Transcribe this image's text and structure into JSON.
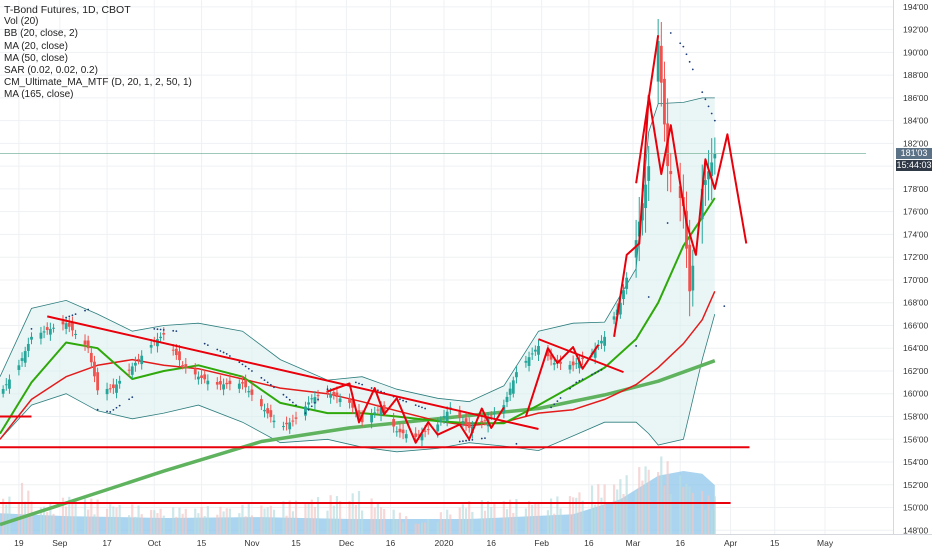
{
  "legend": {
    "title": "T-Bond Futures, 1D, CBOT",
    "indicators": [
      "Vol (20)",
      "BB (20, close, 2)",
      "MA (20, close)",
      "MA (50, close)",
      "SAR (0.02, 0.02, 0.2)",
      "CM_Ultimate_MA_MTF (D, 20, 1, 2, 50, 1)",
      "MA (165, close)"
    ]
  },
  "price_badges": {
    "last": "181'03",
    "countdown": "15:44:03",
    "colors": {
      "last": "#5b7186",
      "countdown": "#2f3a46"
    }
  },
  "colors": {
    "up_candle": "#26a69a",
    "down_candle": "#ef5350",
    "bb": "#2e7d7d",
    "bb_fill": "#d9efef",
    "ma20": "#2ea80a",
    "ma50": "#e31b1b",
    "ma165": "#5fb35f",
    "sar": "#1c3d7a",
    "trendline": "#e8000b",
    "volume_area": "#8ec6ea",
    "volume_bar": "#a8d4f0"
  },
  "chart_data": {
    "type": "candlestick",
    "title": "T-Bond Futures, 1D, CBOT",
    "y_ticks": [
      "148'00",
      "150'00",
      "152'00",
      "154'00",
      "156'00",
      "158'00",
      "160'00",
      "162'00",
      "164'00",
      "166'00",
      "168'00",
      "170'00",
      "172'00",
      "174'00",
      "176'00",
      "178'00",
      "180'00",
      "182'00",
      "184'00",
      "186'00",
      "188'00",
      "190'00",
      "192'00",
      "194'00"
    ],
    "ylim": [
      147.5,
      194.6
    ],
    "x_ticks": [
      "19",
      "Sep",
      "17",
      "Oct",
      "15",
      "Nov",
      "15",
      "Dec",
      "16",
      "2020",
      "16",
      "Feb",
      "16",
      "Mar",
      "16",
      "Apr",
      "15",
      "May"
    ],
    "x_range": [
      "2019-08-13",
      "2020-05-14"
    ],
    "price_path": [
      [
        "2019-08-13",
        160.0
      ],
      [
        "2019-08-19",
        162.5
      ],
      [
        "2019-08-23",
        165.0
      ],
      [
        "2019-08-28",
        165.6
      ],
      [
        "2019-09-03",
        166.2
      ],
      [
        "2019-09-10",
        164.0
      ],
      [
        "2019-09-13",
        160.3
      ],
      [
        "2019-09-18",
        160.5
      ],
      [
        "2019-09-24",
        162.4
      ],
      [
        "2019-10-01",
        164.6
      ],
      [
        "2019-10-04",
        165.2
      ],
      [
        "2019-10-10",
        162.5
      ],
      [
        "2019-10-15",
        161.5
      ],
      [
        "2019-10-21",
        160.8
      ],
      [
        "2019-10-29",
        160.9
      ],
      [
        "2019-11-04",
        158.9
      ],
      [
        "2019-11-10",
        157.0
      ],
      [
        "2019-11-15",
        157.8
      ],
      [
        "2019-11-20",
        159.6
      ],
      [
        "2019-11-25",
        160.1
      ],
      [
        "2019-12-02",
        159.2
      ],
      [
        "2019-12-06",
        157.5
      ],
      [
        "2019-12-12",
        158.8
      ],
      [
        "2019-12-17",
        156.7
      ],
      [
        "2019-12-23",
        156.2
      ],
      [
        "2019-12-30",
        157.3
      ],
      [
        "2020-01-03",
        158.8
      ],
      [
        "2020-01-09",
        157.0
      ],
      [
        "2020-01-14",
        157.6
      ],
      [
        "2020-01-20",
        159.0
      ],
      [
        "2020-01-24",
        161.9
      ],
      [
        "2020-01-31",
        164.2
      ],
      [
        "2020-02-05",
        162.7
      ],
      [
        "2020-02-11",
        162.5
      ],
      [
        "2020-02-17",
        163.6
      ],
      [
        "2020-02-21",
        165.0
      ],
      [
        "2020-02-26",
        168.0
      ],
      [
        "2020-03-02",
        173.5
      ],
      [
        "2020-03-06",
        180.0
      ],
      [
        "2020-03-09",
        191.0
      ],
      [
        "2020-03-12",
        180.0
      ],
      [
        "2020-03-17",
        176.5
      ],
      [
        "2020-03-19",
        169.0
      ],
      [
        "2020-03-23",
        178.0
      ],
      [
        "2020-03-27",
        181.1
      ]
    ],
    "series": [
      {
        "name": "BB (20, close, 2)",
        "points": [
          [
            "2019-08-13",
            161.5,
            156.0
          ],
          [
            "2019-08-23",
            167.5,
            159.0
          ],
          [
            "2019-09-03",
            168.2,
            160.0
          ],
          [
            "2019-09-13",
            167.0,
            158.5
          ],
          [
            "2019-09-24",
            165.5,
            157.8
          ],
          [
            "2019-10-04",
            166.0,
            158.3
          ],
          [
            "2019-10-15",
            166.2,
            159.0
          ],
          [
            "2019-10-29",
            165.5,
            157.5
          ],
          [
            "2019-11-10",
            163.0,
            155.7
          ],
          [
            "2019-11-25",
            161.2,
            156.0
          ],
          [
            "2019-12-06",
            161.5,
            155.3
          ],
          [
            "2019-12-17",
            160.4,
            154.9
          ],
          [
            "2019-12-30",
            159.6,
            155.2
          ],
          [
            "2020-01-09",
            159.3,
            155.7
          ],
          [
            "2020-01-20",
            160.7,
            155.4
          ],
          [
            "2020-01-31",
            165.5,
            155.0
          ],
          [
            "2020-02-11",
            166.2,
            156.3
          ],
          [
            "2020-02-21",
            166.3,
            157.5
          ],
          [
            "2020-03-02",
            171.0,
            157.5
          ],
          [
            "2020-03-06",
            183.0,
            156.5
          ],
          [
            "2020-03-09",
            185.5,
            155.5
          ],
          [
            "2020-03-17",
            185.6,
            156.0
          ],
          [
            "2020-03-23",
            186.0,
            163.0
          ],
          [
            "2020-03-27",
            186.0,
            167.0
          ]
        ]
      },
      {
        "name": "MA (20, close)",
        "points": [
          [
            "2019-08-13",
            156.5
          ],
          [
            "2019-08-23",
            161.0
          ],
          [
            "2019-09-03",
            164.5
          ],
          [
            "2019-09-13",
            164.0
          ],
          [
            "2019-09-24",
            161.3
          ],
          [
            "2019-10-04",
            162.0
          ],
          [
            "2019-10-15",
            162.5
          ],
          [
            "2019-10-29",
            161.5
          ],
          [
            "2019-11-10",
            159.2
          ],
          [
            "2019-11-25",
            158.3
          ],
          [
            "2019-12-06",
            158.3
          ],
          [
            "2019-12-17",
            158.0
          ],
          [
            "2019-12-30",
            157.6
          ],
          [
            "2020-01-09",
            157.4
          ],
          [
            "2020-01-20",
            157.4
          ],
          [
            "2020-01-31",
            159.0
          ],
          [
            "2020-02-11",
            160.7
          ],
          [
            "2020-02-21",
            162.3
          ],
          [
            "2020-03-02",
            164.8
          ],
          [
            "2020-03-09",
            168.0
          ],
          [
            "2020-03-17",
            173.0
          ],
          [
            "2020-03-23",
            175.5
          ],
          [
            "2020-03-27",
            177.2
          ]
        ]
      },
      {
        "name": "MA (50, close)",
        "points": [
          [
            "2019-08-13",
            156.0
          ],
          [
            "2019-08-23",
            159.5
          ],
          [
            "2019-09-03",
            161.5
          ],
          [
            "2019-09-13",
            162.5
          ],
          [
            "2019-09-24",
            163.0
          ],
          [
            "2019-10-04",
            162.5
          ],
          [
            "2019-10-15",
            162.2
          ],
          [
            "2019-10-29",
            161.3
          ],
          [
            "2019-11-10",
            160.5
          ],
          [
            "2019-11-25",
            160.0
          ],
          [
            "2019-12-06",
            159.3
          ],
          [
            "2019-12-17",
            158.5
          ],
          [
            "2019-12-30",
            157.6
          ],
          [
            "2020-01-09",
            157.2
          ],
          [
            "2020-01-20",
            157.5
          ],
          [
            "2020-01-31",
            158.3
          ],
          [
            "2020-02-11",
            158.6
          ],
          [
            "2020-02-21",
            159.5
          ],
          [
            "2020-03-02",
            160.8
          ],
          [
            "2020-03-09",
            162.3
          ],
          [
            "2020-03-17",
            164.4
          ],
          [
            "2020-03-23",
            166.5
          ],
          [
            "2020-03-27",
            169.0
          ]
        ]
      },
      {
        "name": "MA (165, close)",
        "points": [
          [
            "2019-08-13",
            148.5
          ],
          [
            "2019-09-03",
            150.4
          ],
          [
            "2019-10-04",
            153.2
          ],
          [
            "2019-11-04",
            155.8
          ],
          [
            "2019-12-02",
            157.0
          ],
          [
            "2019-12-30",
            157.8
          ],
          [
            "2020-01-31",
            158.7
          ],
          [
            "2020-02-21",
            159.9
          ],
          [
            "2020-03-09",
            161.1
          ],
          [
            "2020-03-27",
            162.9
          ]
        ]
      },
      {
        "name": "SAR (0.02, 0.02, 0.2)",
        "points": [
          [
            "2019-08-23",
            165.7
          ],
          [
            "2019-09-03",
            166.7
          ],
          [
            "2019-09-10",
            167.4
          ],
          [
            "2019-09-13",
            158.6
          ],
          [
            "2019-09-17",
            158.4
          ],
          [
            "2019-09-24",
            159.7
          ],
          [
            "2019-10-01",
            165.7
          ],
          [
            "2019-10-08",
            165.5
          ],
          [
            "2019-10-17",
            164.4
          ],
          [
            "2019-10-24",
            163.5
          ],
          [
            "2019-10-30",
            162.4
          ],
          [
            "2019-11-06",
            161.0
          ],
          [
            "2019-11-12",
            159.7
          ],
          [
            "2019-11-18",
            158.3
          ],
          [
            "2019-11-25",
            160.4
          ],
          [
            "2019-12-04",
            161.0
          ],
          [
            "2019-12-12",
            160.2
          ],
          [
            "2019-12-19",
            159.4
          ],
          [
            "2019-12-26",
            158.7
          ],
          [
            "2020-01-06",
            155.8
          ],
          [
            "2020-01-14",
            156.1
          ],
          [
            "2020-01-24",
            155.6
          ],
          [
            "2020-02-04",
            158.8
          ],
          [
            "2020-02-12",
            161.0
          ],
          [
            "2020-02-20",
            162.1
          ],
          [
            "2020-03-02",
            164.2
          ],
          [
            "2020-03-06",
            168.5
          ],
          [
            "2020-03-12",
            175.0
          ],
          [
            "2020-03-13",
            191.7
          ],
          [
            "2020-03-17",
            190.5
          ],
          [
            "2020-03-23",
            186.5
          ],
          [
            "2020-03-27",
            184.0
          ],
          [
            "2020-03-30",
            167.7
          ]
        ]
      }
    ],
    "volume": {
      "area": [
        [
          "2019-08-13",
          0.22
        ],
        [
          "2019-09-03",
          0.19
        ],
        [
          "2019-10-04",
          0.17
        ],
        [
          "2019-11-04",
          0.18
        ],
        [
          "2019-12-02",
          0.16
        ],
        [
          "2020-01-09",
          0.16
        ],
        [
          "2020-02-11",
          0.21
        ],
        [
          "2020-02-26",
          0.37
        ],
        [
          "2020-03-09",
          0.62
        ],
        [
          "2020-03-17",
          0.67
        ],
        [
          "2020-03-23",
          0.64
        ],
        [
          "2020-03-27",
          0.52
        ]
      ],
      "bars": [
        [
          "2019-08-19",
          0.58
        ],
        [
          "2019-08-27",
          0.31
        ],
        [
          "2019-09-04",
          0.42
        ],
        [
          "2019-09-16",
          0.35
        ],
        [
          "2019-10-02",
          0.28
        ],
        [
          "2019-10-21",
          0.3
        ],
        [
          "2019-11-07",
          0.33
        ],
        [
          "2019-12-05",
          0.46
        ],
        [
          "2019-12-24",
          0.12
        ],
        [
          "2020-01-08",
          0.36
        ],
        [
          "2020-02-04",
          0.38
        ],
        [
          "2020-02-28",
          0.63
        ],
        [
          "2020-03-09",
          0.88
        ],
        [
          "2020-03-13",
          0.74
        ],
        [
          "2020-03-19",
          0.57
        ],
        [
          "2020-03-25",
          0.41
        ]
      ]
    },
    "annotations": {
      "horizontal_lines": [
        {
          "y": 158.0,
          "from": "2019-08-13",
          "to": "2019-08-23"
        },
        {
          "y": 155.3,
          "from": "2019-08-13",
          "to": "2020-04-07"
        },
        {
          "y": 150.4,
          "from": "2019-08-13",
          "to": "2020-04-01"
        },
        {
          "y": 181.1,
          "from": "2019-08-13",
          "to": "2020-05-14",
          "style": "thin"
        }
      ],
      "trendlines": [
        {
          "from": [
            "2019-08-28",
            166.8
          ],
          "to": [
            "2020-01-31",
            156.9
          ]
        },
        {
          "from": [
            "2020-01-31",
            164.8
          ],
          "to": [
            "2020-02-27",
            161.9
          ]
        },
        {
          "from": [
            "2020-03-02",
            178.5
          ],
          "to": [
            "2020-03-09",
            191.5
          ]
        }
      ],
      "zigzags": [
        [
          [
            "2019-11-25",
            160.2
          ],
          [
            "2019-12-02",
            160.9
          ],
          [
            "2019-12-05",
            157.5
          ],
          [
            "2019-12-10",
            160.5
          ],
          [
            "2019-12-13",
            158.2
          ],
          [
            "2019-12-17",
            159.6
          ],
          [
            "2019-12-23",
            155.7
          ],
          [
            "2019-12-27",
            157.5
          ],
          [
            "2019-12-30",
            156.4
          ],
          [
            "2020-01-06",
            157.3
          ],
          [
            "2020-01-09",
            156.0
          ],
          [
            "2020-01-13",
            158.7
          ],
          [
            "2020-01-16",
            157.0
          ],
          [
            "2020-01-20",
            158.8
          ]
        ],
        [
          [
            "2020-01-27",
            158.0
          ],
          [
            "2020-02-03",
            164.0
          ],
          [
            "2020-02-06",
            162.7
          ],
          [
            "2020-02-11",
            164.1
          ],
          [
            "2020-02-14",
            162.2
          ],
          [
            "2020-02-19",
            164.3
          ]
        ],
        [
          [
            "2020-02-24",
            165.0
          ],
          [
            "2020-02-28",
            172.2
          ],
          [
            "2020-03-03",
            173.2
          ],
          [
            "2020-03-06",
            186.2
          ],
          [
            "2020-03-10",
            179.3
          ],
          [
            "2020-03-13",
            183.6
          ],
          [
            "2020-03-18",
            175.0
          ],
          [
            "2020-03-21",
            172.2
          ],
          [
            "2020-03-24",
            180.6
          ],
          [
            "2020-03-27",
            178.0
          ],
          [
            "2020-03-31",
            182.8
          ],
          [
            "2020-04-06",
            173.2
          ]
        ]
      ]
    },
    "grid": true,
    "legend_position": "top-left"
  }
}
